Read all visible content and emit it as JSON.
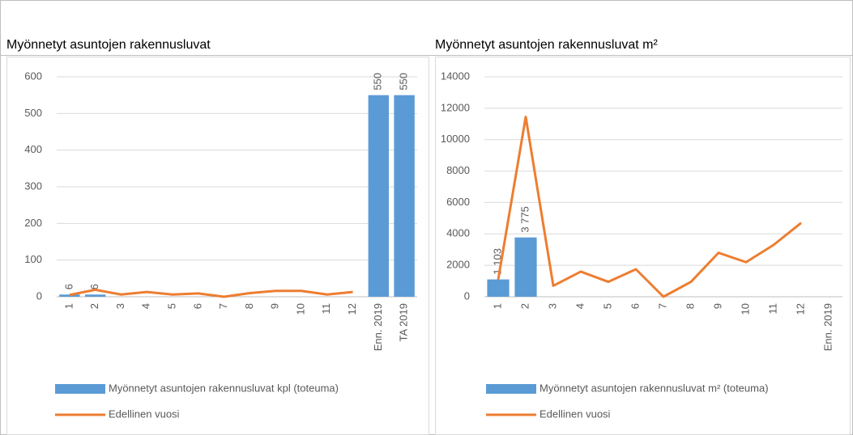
{
  "chart_data": [
    {
      "type": "bar",
      "title": "Myönnetyt asuntojen rakennusluvat",
      "categories": [
        "1",
        "2",
        "3",
        "4",
        "5",
        "6",
        "7",
        "8",
        "9",
        "10",
        "11",
        "12",
        "Enn. 2019",
        "TA 2019"
      ],
      "series": [
        {
          "name": "Myönnetyt asuntojen rakennusluvat kpl (toteuma)",
          "color": "#5b9bd5",
          "type": "bar",
          "values": [
            6,
            6,
            null,
            null,
            null,
            null,
            null,
            null,
            null,
            null,
            null,
            null,
            550,
            550
          ]
        },
        {
          "name": "Edellinen vuosi",
          "color": "#ed7d31",
          "type": "line",
          "values": [
            5,
            19,
            6,
            13,
            6,
            9,
            0,
            10,
            16,
            16,
            6,
            13,
            null,
            null
          ]
        }
      ],
      "ylim": [
        0,
        600
      ],
      "yticks": [
        0,
        100,
        200,
        300,
        400,
        500,
        600
      ],
      "grid": true
    },
    {
      "type": "bar",
      "title": "Myönnetyt asuntojen rakennusluvat m²",
      "categories": [
        "1",
        "2",
        "3",
        "4",
        "5",
        "6",
        "7",
        "8",
        "9",
        "10",
        "11",
        "12",
        "Enn. 2019"
      ],
      "series": [
        {
          "name": "Myönnetyt asuntojen rakennusluvat m² (toteuma)",
          "color": "#5b9bd5",
          "type": "bar",
          "values": [
            1103,
            3775,
            null,
            null,
            null,
            null,
            null,
            null,
            null,
            null,
            null,
            null,
            null
          ],
          "value_labels": [
            "1 103",
            "3 775",
            null,
            null,
            null,
            null,
            null,
            null,
            null,
            null,
            null,
            null,
            null
          ]
        },
        {
          "name": "Edellinen vuosi",
          "color": "#ed7d31",
          "type": "line",
          "values": [
            1103,
            11450,
            700,
            1600,
            950,
            1750,
            0,
            950,
            2800,
            2200,
            3300,
            4700,
            null
          ]
        }
      ],
      "ylim": [
        0,
        14000
      ],
      "yticks": [
        0,
        2000,
        4000,
        6000,
        8000,
        10000,
        12000,
        14000
      ],
      "grid": true
    }
  ]
}
